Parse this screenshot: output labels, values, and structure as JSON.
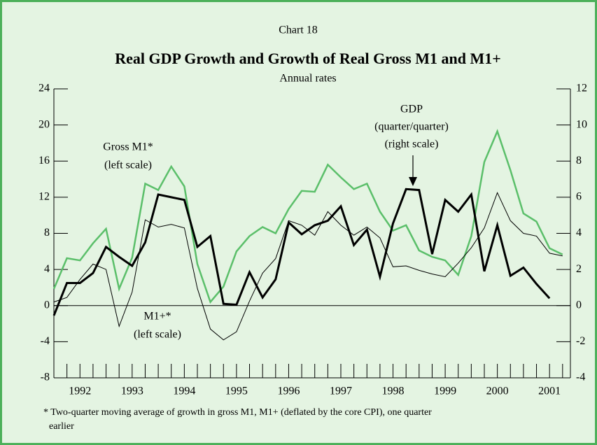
{
  "chart_data": {
    "type": "line",
    "label": "Chart 18",
    "title": "Real GDP Growth and Growth of Real Gross M1 and M1+",
    "subtitle": "Annual rates",
    "annotations": [
      "Gross M1*",
      "(left scale)",
      "M1+*",
      "(left scale)",
      "GDP",
      "(quarter/quarter)",
      "(right scale)"
    ],
    "footnote": [
      "* Two-quarter moving average of growth in gross M1, M1+ (deflated by the core CPI), one quarter",
      "earlier"
    ],
    "x": [
      1992,
      1992.25,
      1992.5,
      1992.75,
      1993,
      1993.25,
      1993.5,
      1993.75,
      1994,
      1994.25,
      1994.5,
      1994.75,
      1995,
      1995.25,
      1995.5,
      1995.75,
      1996,
      1996.25,
      1996.5,
      1996.75,
      1997,
      1997.25,
      1997.5,
      1997.75,
      1998,
      1998.25,
      1998.5,
      1998.75,
      1999,
      1999.25,
      1999.5,
      1999.75,
      2000,
      2000.25,
      2000.5,
      2000.75,
      2001,
      2001.25,
      2001.5,
      2001.75
    ],
    "xlim": [
      1992,
      2001.9
    ],
    "xticks": [
      {
        "value": 1992.5,
        "label": "1992"
      },
      {
        "value": 1993.5,
        "label": "1993"
      },
      {
        "value": 1994.5,
        "label": "1994"
      },
      {
        "value": 1995.5,
        "label": "1995"
      },
      {
        "value": 1996.5,
        "label": "1996"
      },
      {
        "value": 1997.5,
        "label": "1997"
      },
      {
        "value": 1998.5,
        "label": "1998"
      },
      {
        "value": 1999.5,
        "label": "1999"
      },
      {
        "value": 2000.5,
        "label": "2000"
      },
      {
        "value": 2001.5,
        "label": "2001"
      }
    ],
    "ylim": [
      -8,
      24
    ],
    "yticks": [
      -8,
      -4,
      0,
      4,
      8,
      12,
      16,
      20,
      24
    ],
    "y2lim": [
      -4,
      12
    ],
    "y2ticks": [
      -4,
      -2,
      0,
      2,
      4,
      6,
      8,
      10,
      12
    ],
    "series": [
      {
        "name": "Gross M1*",
        "color": "#5bbf6a",
        "values": [
          1.85,
          5.25,
          5.0,
          6.9,
          8.5,
          1.85,
          5.3,
          13.5,
          12.8,
          15.4,
          13.2,
          4.6,
          0.4,
          2.1,
          6.0,
          7.7,
          8.7,
          8.0,
          10.7,
          12.7,
          12.6,
          15.6,
          14.2,
          12.9,
          13.5,
          10.4,
          8.3,
          8.9,
          6.1,
          5.4,
          5.0,
          3.4,
          7.7,
          15.9,
          19.3,
          15.0,
          10.2,
          9.3,
          6.35,
          5.65
        ]
      },
      {
        "name": "M1+*",
        "color": "#000000",
        "values": [
          0.4,
          0.9,
          2.9,
          4.6,
          4.0,
          -2.3,
          1.5,
          9.5,
          8.7,
          9.0,
          8.6,
          1.9,
          -2.6,
          -3.8,
          -2.9,
          0.5,
          3.6,
          5.2,
          9.4,
          8.9,
          7.8,
          10.4,
          8.9,
          7.8,
          8.7,
          7.5,
          4.3,
          4.4,
          3.9,
          3.5,
          3.2,
          4.7,
          6.4,
          8.6,
          12.5,
          9.4,
          8.0,
          7.7,
          5.8,
          5.5
        ]
      },
      {
        "name": "GDP",
        "color": "#000000",
        "axis": "y2",
        "values": [
          -0.55,
          1.25,
          1.25,
          1.8,
          3.25,
          2.7,
          2.2,
          3.5,
          6.15,
          6.0,
          5.85,
          3.25,
          3.85,
          0.1,
          0.05,
          1.85,
          0.45,
          1.45,
          4.6,
          3.95,
          4.45,
          4.7,
          5.5,
          3.35,
          4.2,
          1.6,
          4.55,
          6.45,
          6.4,
          2.85,
          5.85,
          5.2,
          6.15,
          1.9,
          4.45,
          1.65,
          2.1,
          1.2,
          0.4,
          null
        ]
      }
    ]
  }
}
